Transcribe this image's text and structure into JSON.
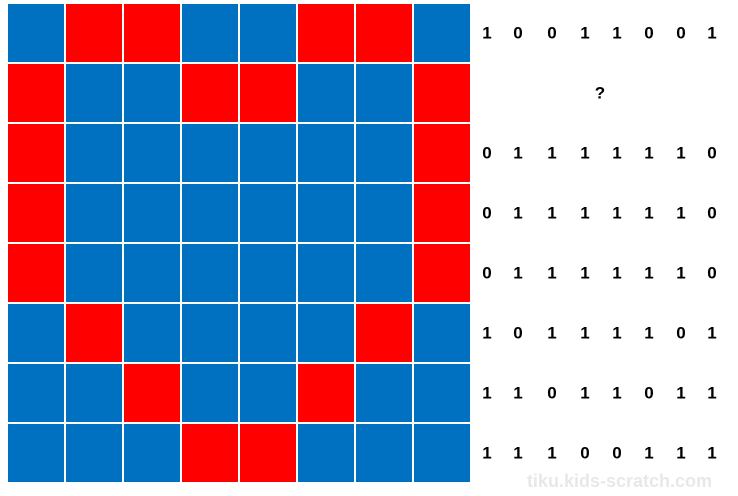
{
  "palette": {
    "B": "#0070c0",
    "R": "#ff0000"
  },
  "grid": {
    "rows": [
      [
        "B",
        "R",
        "R",
        "B",
        "B",
        "R",
        "R",
        "B"
      ],
      [
        "R",
        "B",
        "B",
        "R",
        "R",
        "B",
        "B",
        "R"
      ],
      [
        "R",
        "B",
        "B",
        "B",
        "B",
        "B",
        "B",
        "R"
      ],
      [
        "R",
        "B",
        "B",
        "B",
        "B",
        "B",
        "B",
        "R"
      ],
      [
        "R",
        "B",
        "B",
        "B",
        "B",
        "B",
        "B",
        "R"
      ],
      [
        "B",
        "R",
        "B",
        "B",
        "B",
        "B",
        "R",
        "B"
      ],
      [
        "B",
        "B",
        "R",
        "B",
        "B",
        "R",
        "B",
        "B"
      ],
      [
        "B",
        "B",
        "B",
        "R",
        "R",
        "B",
        "B",
        "B"
      ]
    ]
  },
  "codes": [
    [
      "1",
      "0",
      "0",
      "1",
      "1",
      "0",
      "0",
      "1"
    ],
    [
      "?"
    ],
    [
      "0",
      "1",
      "1",
      "1",
      "1",
      "1",
      "1",
      "0"
    ],
    [
      "0",
      "1",
      "1",
      "1",
      "1",
      "1",
      "1",
      "0"
    ],
    [
      "0",
      "1",
      "1",
      "1",
      "1",
      "1",
      "1",
      "0"
    ],
    [
      "1",
      "0",
      "1",
      "1",
      "1",
      "1",
      "0",
      "1"
    ],
    [
      "1",
      "1",
      "0",
      "1",
      "1",
      "0",
      "1",
      "1"
    ],
    [
      "1",
      "1",
      "1",
      "0",
      "0",
      "1",
      "1",
      "1"
    ]
  ],
  "watermark": "tiku.kids-scratch.com"
}
